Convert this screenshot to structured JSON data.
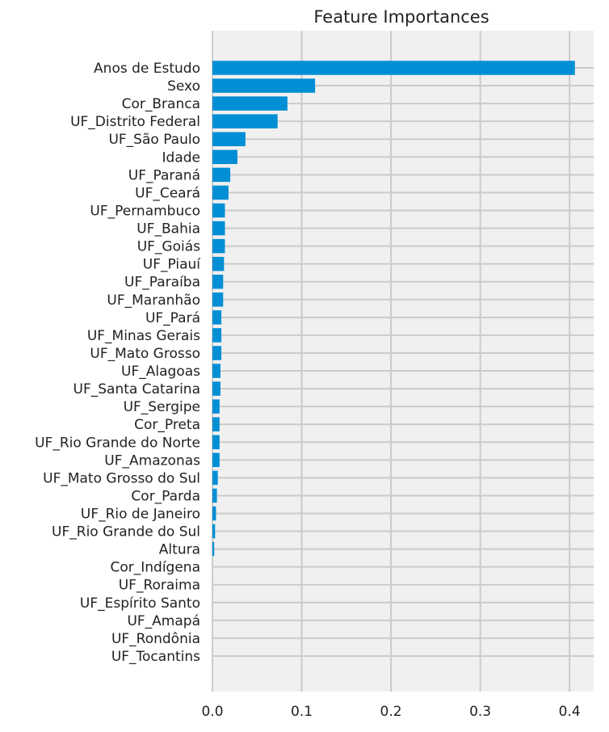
{
  "chart_data": {
    "type": "bar",
    "orientation": "horizontal",
    "title": "Feature Importances",
    "xlabel": "",
    "ylabel": "",
    "xlim": [
      0,
      0.427
    ],
    "xticks": [
      0.0,
      0.1,
      0.2,
      0.3,
      0.4
    ],
    "xtick_labels": [
      "0.0",
      "0.1",
      "0.2",
      "0.3",
      "0.4"
    ],
    "grid": true,
    "bar_color": "#008fd5",
    "background_color": "#f0f0f0",
    "grid_color": "#cbcbcb",
    "categories": [
      "Anos de Estudo",
      "Sexo",
      "Cor_Branca",
      "UF_Distrito Federal",
      "UF_São Paulo",
      "Idade",
      "UF_Paraná",
      "UF_Ceará",
      "UF_Pernambuco",
      "UF_Bahia",
      "UF_Goiás",
      "UF_Piauí",
      "UF_Paraíba",
      "UF_Maranhão",
      "UF_Pará",
      "UF_Minas Gerais",
      "UF_Mato Grosso",
      "UF_Alagoas",
      "UF_Santa Catarina",
      "UF_Sergipe",
      "Cor_Preta",
      "UF_Rio Grande do Norte",
      "UF_Amazonas",
      "UF_Mato Grosso do Sul",
      "Cor_Parda",
      "UF_Rio de Janeiro",
      "UF_Rio Grande do Sul",
      "Altura",
      "Cor_Indígena",
      "UF_Roraima",
      "UF_Espírito Santo",
      "UF_Amapá",
      "UF_Rondônia",
      "UF_Tocantins"
    ],
    "values": [
      0.406,
      0.115,
      0.084,
      0.073,
      0.037,
      0.028,
      0.02,
      0.018,
      0.014,
      0.014,
      0.014,
      0.013,
      0.012,
      0.012,
      0.01,
      0.01,
      0.01,
      0.009,
      0.009,
      0.008,
      0.008,
      0.008,
      0.008,
      0.006,
      0.005,
      0.004,
      0.003,
      0.002,
      0.0,
      0.0,
      0.0,
      0.0,
      0.0,
      0.0
    ]
  }
}
